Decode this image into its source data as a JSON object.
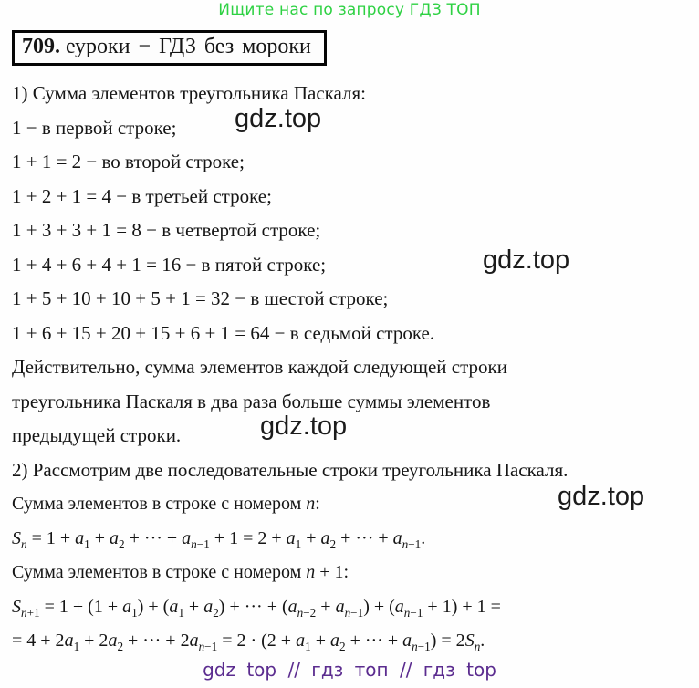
{
  "header": {
    "promo": "Ищите нас по запросу ГДЗ ТОП",
    "promo_color": "#2ed143",
    "title_number": "709.",
    "title_text": "еуроки − ГДЗ без мороки"
  },
  "watermark": {
    "text": "gdz.top"
  },
  "solution": {
    "lines": [
      "1) Сумма элементов треугольника Паскаля:",
      "1 − в первой строке;",
      "1 + 1 = 2 − во второй строке;",
      "1 + 2 + 1 = 4 − в третьей строке;",
      "1 + 3 + 3 + 1 = 8 − в четвертой строке;",
      "1 + 4 + 6 + 4 + 1 = 16 − в пятой строке;",
      "1 + 5 + 10 + 10 + 5 + 1 = 32 − в шестой строке;",
      "1 + 6 + 15 + 20 + 15 + 6 + 1 = 64 − в седьмой строке.",
      "Действительно, сумма элементов каждой следующей строки",
      "треугольника Паскаля в два раза больше суммы элементов",
      "предыдущей строки.",
      "2) Рассмотрим две последовательные строки треугольника Паскаля.",
      "Сумма элементов в строке с номером n:",
      "S_{n} = 1 + a_{1} + a_{2} + ··· + a_{n−1} + 1 = 2 + a_{1} + a_{2} + ··· + a_{n−1}.",
      "Сумма элементов в строке с номером n + 1:",
      "S_{n+1} = 1 + (1 + a_{1}) + (a_{1} + a_{2}) + ··· + (a_{n−2} + a_{n−1}) + (a_{n−1} + 1) + 1 =",
      "= 4 + 2a_{1} + 2a_{2} + ··· + 2a_{n−1} = 2 · (2 + a_{1} + a_{2} + ··· + a_{n−1}) = 2S_{n}."
    ]
  },
  "footer": {
    "text": "gdz top // гдз топ // гдз top",
    "color": "#5b2c8f"
  }
}
